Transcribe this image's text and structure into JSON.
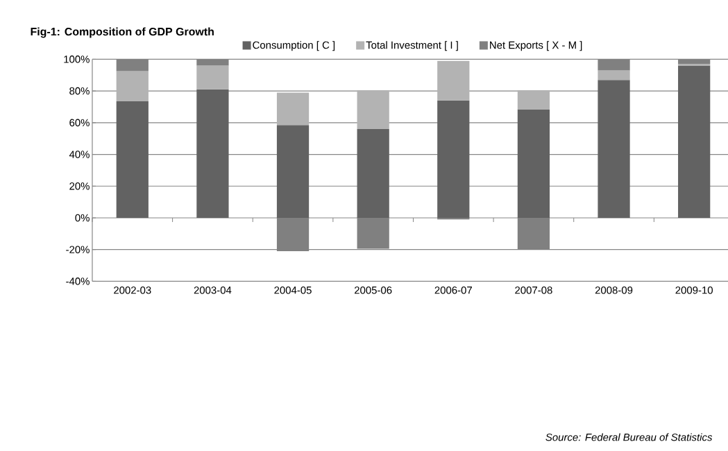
{
  "chart_data": {
    "type": "bar",
    "title": "Fig-1: Composition of GDP Growth",
    "categories": [
      "2002-03",
      "2003-04",
      "2004-05",
      "2005-06",
      "2006-07",
      "2007-08",
      "2008-09",
      "2009-10"
    ],
    "stacked": true,
    "series": [
      {
        "name": "Consumption  [ C ]",
        "color": "#626262",
        "values": [
          73.5,
          81,
          58.5,
          56,
          74,
          68.5,
          87,
          96
        ]
      },
      {
        "name": "Total Investment  [ I ]",
        "color": "#b3b3b3",
        "values": [
          19,
          15,
          20.5,
          24.5,
          25,
          12,
          6,
          1
        ]
      },
      {
        "name": "Net Exports  [ X - M ]",
        "color": "#808080",
        "values": [
          7.5,
          4,
          -21,
          -19.5,
          -1,
          -20,
          7,
          3
        ]
      }
    ],
    "ylim": [
      -40,
      100
    ],
    "yticks": [
      {
        "value": -40,
        "label": "-40%"
      },
      {
        "value": -20,
        "label": "-20%"
      },
      {
        "value": 0,
        "label": "0%"
      },
      {
        "value": 20,
        "label": "20%"
      },
      {
        "value": 40,
        "label": "40%"
      },
      {
        "value": 60,
        "label": "60%"
      },
      {
        "value": 80,
        "label": "80%"
      },
      {
        "value": 100,
        "label": "100%"
      }
    ],
    "grid": "y",
    "legend": "top",
    "annotations": [
      "Source: Federal Bureau of Statistics"
    ]
  }
}
